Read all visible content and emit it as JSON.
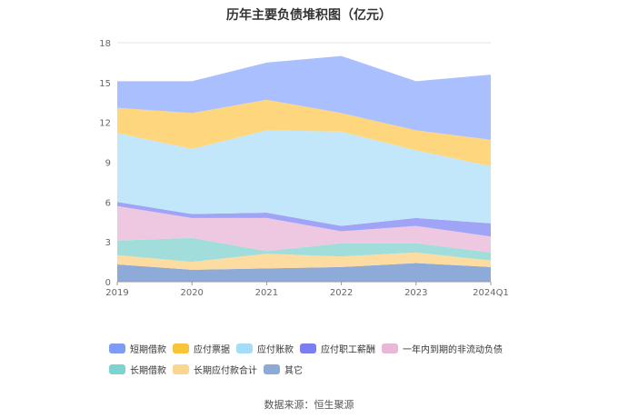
{
  "title": "历年主要负债堆积图（亿元）",
  "source": "数据来源：恒生聚源",
  "chart_data": {
    "type": "area",
    "stacked": true,
    "title": "历年主要负债堆积图（亿元）",
    "xlabel": "",
    "ylabel": "",
    "ylim": [
      0,
      18
    ],
    "yticks": [
      0,
      3,
      6,
      9,
      12,
      15,
      18
    ],
    "grid": true,
    "legend_position": "bottom",
    "categories": [
      "2019",
      "2020",
      "2021",
      "2022",
      "2023",
      "2024Q1"
    ],
    "series": [
      {
        "name": "其它",
        "color": "#8eaad8",
        "values": [
          1.3,
          0.9,
          1.0,
          1.1,
          1.4,
          1.1
        ]
      },
      {
        "name": "长期应付款合计",
        "color": "#fcdca0",
        "values": [
          0.7,
          0.6,
          1.1,
          0.8,
          0.8,
          0.5
        ]
      },
      {
        "name": "长期借款",
        "color": "#a1dedb",
        "values": [
          1.1,
          1.8,
          0.2,
          1.0,
          0.7,
          0.6
        ]
      },
      {
        "name": "一年内到期的非流动负债",
        "color": "#eec8e0",
        "values": [
          2.6,
          1.5,
          2.5,
          0.9,
          1.3,
          1.2
        ]
      },
      {
        "name": "应付职工薪酬",
        "color": "#a0a4f6",
        "values": [
          0.3,
          0.3,
          0.4,
          0.4,
          0.6,
          1.0
        ]
      },
      {
        "name": "应付账款",
        "color": "#c3e7fa",
        "values": [
          5.2,
          4.9,
          6.2,
          7.1,
          5.1,
          4.3
        ]
      },
      {
        "name": "应付票据",
        "color": "#fdd67e",
        "values": [
          1.9,
          2.7,
          2.3,
          1.4,
          1.5,
          2.0
        ]
      },
      {
        "name": "短期借款",
        "color": "#aabffd",
        "values": [
          2.0,
          2.4,
          2.8,
          4.3,
          3.7,
          4.9
        ]
      }
    ]
  },
  "legend": [
    {
      "label": "短期借款",
      "color": "#7e9cf5"
    },
    {
      "label": "应付票据",
      "color": "#fbc33a"
    },
    {
      "label": "应付账款",
      "color": "#a5dcf6"
    },
    {
      "label": "应付职工薪酬",
      "color": "#7a7ef0"
    },
    {
      "label": "一年内到期的非流动负债",
      "color": "#e8b8d8"
    },
    {
      "label": "长期借款",
      "color": "#7dd3cf"
    },
    {
      "label": "长期应付款合计",
      "color": "#fbd68f"
    },
    {
      "label": "其它",
      "color": "#8caad6"
    }
  ]
}
